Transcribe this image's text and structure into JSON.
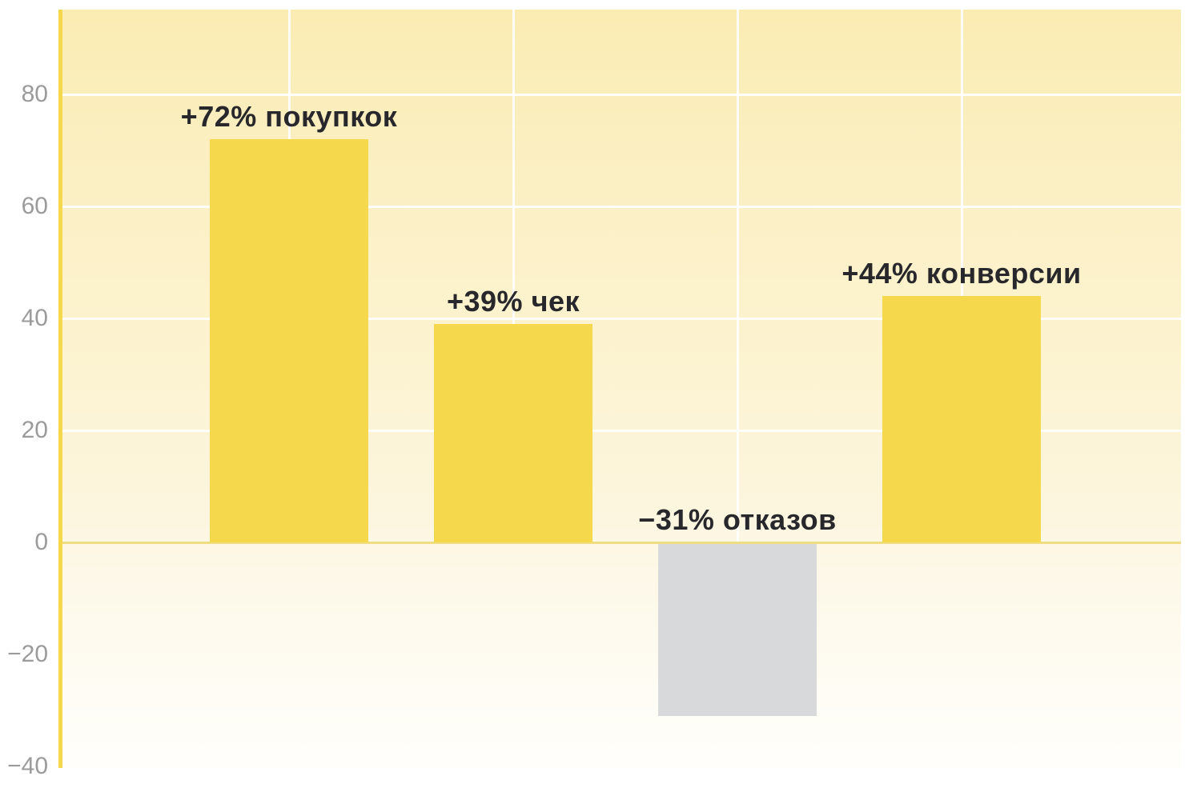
{
  "colors": {
    "bar_yellow": "#F5D84B",
    "bar_gray": "#D8D9DA",
    "grid_line": "#FFFFFF",
    "zero_line": "#F0DC83",
    "axis_line": "#F6D84C",
    "tick_text": "#9B9B9B",
    "label_text": "#28282C",
    "background_top": "#FAECB2",
    "background_bottom": "#FFFEFB"
  },
  "chart_data": {
    "type": "bar",
    "title": "",
    "xlabel": "",
    "ylabel": "",
    "ylim": [
      -40,
      95
    ],
    "legend": "none",
    "grid": "white gridlines above zero at y=20,40,60,80 and at each bar center",
    "bars": [
      {
        "label": "+72% покупкок",
        "value": 72,
        "color": "yellow"
      },
      {
        "label": "+39% чек",
        "value": 39,
        "color": "yellow"
      },
      {
        "label": "−31% отказов",
        "value": -31,
        "color": "gray"
      },
      {
        "label": "+44% конверсии",
        "value": 44,
        "color": "yellow"
      }
    ],
    "yticks": [
      {
        "value": 80,
        "label": "80"
      },
      {
        "value": 60,
        "label": "60"
      },
      {
        "value": 40,
        "label": "40"
      },
      {
        "value": 20,
        "label": "20"
      },
      {
        "value": 0,
        "label": "0"
      },
      {
        "value": -20,
        "label": "−20"
      },
      {
        "value": -40,
        "label": "−40"
      }
    ]
  }
}
